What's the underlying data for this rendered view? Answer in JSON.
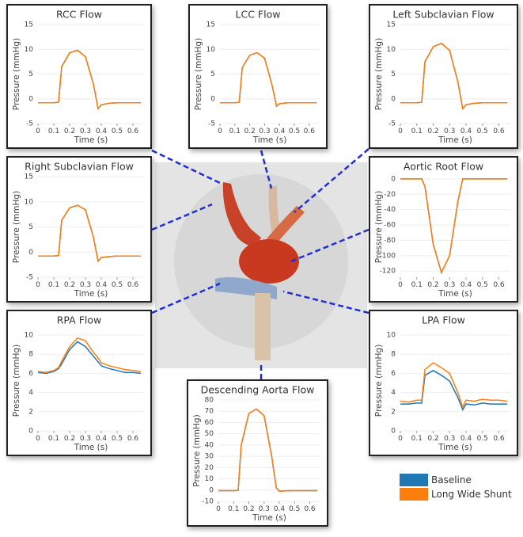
{
  "chart_data": [
    {
      "type": "line",
      "title": "RCC Flow",
      "xlabel": "Time (s)",
      "ylabel": "Pressure (mmHg)",
      "x": [
        0,
        0.05,
        0.1,
        0.13,
        0.15,
        0.2,
        0.25,
        0.3,
        0.35,
        0.38,
        0.4,
        0.45,
        0.5,
        0.55,
        0.6,
        0.65
      ],
      "series": [
        {
          "name": "Baseline",
          "color": "#1f77b4",
          "values": [
            -0.8,
            -0.8,
            -0.8,
            -0.7,
            6.5,
            9.3,
            9.8,
            8.5,
            3,
            -2,
            -1.2,
            -0.9,
            -0.8,
            -0.8,
            -0.8,
            -0.8
          ]
        },
        {
          "name": "Long Wide Shunt",
          "color": "#ff7f0e",
          "values": [
            -0.8,
            -0.8,
            -0.8,
            -0.7,
            6.5,
            9.3,
            9.8,
            8.5,
            3,
            -2,
            -1.2,
            -0.9,
            -0.8,
            -0.8,
            -0.8,
            -0.8
          ]
        }
      ],
      "xlim": [
        0,
        0.67
      ],
      "xticks": [
        0,
        0.1,
        0.2,
        0.3,
        0.4,
        0.5,
        0.6
      ],
      "ylim": [
        -5,
        15
      ],
      "yticks": [
        -5,
        0,
        5,
        10,
        15
      ],
      "grid": true
    },
    {
      "type": "line",
      "title": "LCC Flow",
      "xlabel": "Time (s)",
      "ylabel": "Pressure (mmHg)",
      "x": [
        0,
        0.05,
        0.1,
        0.13,
        0.15,
        0.2,
        0.25,
        0.3,
        0.35,
        0.38,
        0.4,
        0.45,
        0.5,
        0.55,
        0.6,
        0.65
      ],
      "series": [
        {
          "name": "Baseline",
          "color": "#1f77b4",
          "values": [
            -0.8,
            -0.8,
            -0.8,
            -0.7,
            6.3,
            8.8,
            9.3,
            8.2,
            2.8,
            -1.5,
            -1,
            -0.8,
            -0.8,
            -0.8,
            -0.8,
            -0.8
          ]
        },
        {
          "name": "Long Wide Shunt",
          "color": "#ff7f0e",
          "values": [
            -0.8,
            -0.8,
            -0.8,
            -0.7,
            6.3,
            8.8,
            9.3,
            8.2,
            2.8,
            -1.5,
            -1,
            -0.8,
            -0.8,
            -0.8,
            -0.8,
            -0.8
          ]
        }
      ],
      "xlim": [
        0,
        0.67
      ],
      "xticks": [
        0,
        0.1,
        0.2,
        0.3,
        0.4,
        0.5,
        0.6
      ],
      "ylim": [
        -5,
        15
      ],
      "yticks": [
        -5,
        0,
        5,
        10,
        15
      ],
      "grid": true
    },
    {
      "type": "line",
      "title": "Left Subclavian Flow",
      "xlabel": "Time (s)",
      "ylabel": "Pressure (mmHg)",
      "x": [
        0,
        0.05,
        0.1,
        0.13,
        0.15,
        0.2,
        0.25,
        0.3,
        0.35,
        0.38,
        0.4,
        0.45,
        0.5,
        0.55,
        0.6,
        0.65
      ],
      "series": [
        {
          "name": "Baseline",
          "color": "#1f77b4",
          "values": [
            -0.8,
            -0.8,
            -0.8,
            -0.7,
            7.5,
            10.5,
            11.2,
            9.8,
            3.5,
            -2,
            -1.2,
            -0.9,
            -0.8,
            -0.8,
            -0.8,
            -0.8
          ]
        },
        {
          "name": "Long Wide Shunt",
          "color": "#ff7f0e",
          "values": [
            -0.8,
            -0.8,
            -0.8,
            -0.7,
            7.5,
            10.5,
            11.2,
            9.8,
            3.5,
            -2,
            -1.2,
            -0.9,
            -0.8,
            -0.8,
            -0.8,
            -0.8
          ]
        }
      ],
      "xlim": [
        0,
        0.67
      ],
      "xticks": [
        0,
        0.1,
        0.2,
        0.3,
        0.4,
        0.5,
        0.6
      ],
      "ylim": [
        -5,
        15
      ],
      "yticks": [
        -5,
        0,
        5,
        10,
        15
      ],
      "grid": true
    },
    {
      "type": "line",
      "title": "Right Subclavian Flow",
      "xlabel": "Time (s)",
      "ylabel": "Pressure (mmHg)",
      "x": [
        0,
        0.05,
        0.1,
        0.13,
        0.15,
        0.2,
        0.25,
        0.3,
        0.35,
        0.38,
        0.4,
        0.45,
        0.5,
        0.55,
        0.6,
        0.65
      ],
      "series": [
        {
          "name": "Baseline",
          "color": "#1f77b4",
          "values": [
            -0.8,
            -0.8,
            -0.8,
            -0.7,
            6.3,
            8.8,
            9.3,
            8.4,
            3,
            -1.8,
            -1.1,
            -0.9,
            -0.8,
            -0.8,
            -0.8,
            -0.8
          ]
        },
        {
          "name": "Long Wide Shunt",
          "color": "#ff7f0e",
          "values": [
            -0.8,
            -0.8,
            -0.8,
            -0.7,
            6.3,
            8.8,
            9.3,
            8.4,
            3,
            -1.8,
            -1.1,
            -0.9,
            -0.8,
            -0.8,
            -0.8,
            -0.8
          ]
        }
      ],
      "xlim": [
        0,
        0.67
      ],
      "xticks": [
        0,
        0.1,
        0.2,
        0.3,
        0.4,
        0.5,
        0.6
      ],
      "ylim": [
        -5,
        15
      ],
      "yticks": [
        -5,
        0,
        5,
        10,
        15
      ],
      "grid": true
    },
    {
      "type": "line",
      "title": "Aortic Root Flow",
      "xlabel": "Time (s)",
      "ylabel": "Pressure (mmHg)",
      "x": [
        0,
        0.05,
        0.1,
        0.13,
        0.15,
        0.2,
        0.25,
        0.3,
        0.35,
        0.38,
        0.4,
        0.45,
        0.5,
        0.55,
        0.6,
        0.65
      ],
      "series": [
        {
          "name": "Baseline",
          "color": "#1f77b4",
          "values": [
            0,
            0,
            0,
            0,
            -10,
            -85,
            -122,
            -100,
            -30,
            0,
            0,
            0,
            0,
            0,
            0,
            0
          ]
        },
        {
          "name": "Long Wide Shunt",
          "color": "#ff7f0e",
          "values": [
            0,
            0,
            0,
            0,
            -10,
            -85,
            -122,
            -100,
            -30,
            0,
            0,
            0,
            0,
            0,
            0,
            0
          ]
        }
      ],
      "xlim": [
        0,
        0.67
      ],
      "xticks": [
        0,
        0.1,
        0.2,
        0.3,
        0.4,
        0.5,
        0.6
      ],
      "ylim": [
        -128,
        3
      ],
      "yticks": [
        -120,
        -100,
        -80,
        -60,
        -40,
        -20,
        0
      ],
      "grid": true
    },
    {
      "type": "line",
      "title": "RPA Flow",
      "xlabel": "Time (s)",
      "ylabel": "Pressure (mmHg)",
      "x": [
        0,
        0.05,
        0.1,
        0.13,
        0.15,
        0.2,
        0.25,
        0.3,
        0.35,
        0.38,
        0.4,
        0.45,
        0.5,
        0.55,
        0.6,
        0.65
      ],
      "series": [
        {
          "name": "Baseline",
          "color": "#1f77b4",
          "values": [
            6.1,
            6.0,
            6.2,
            6.5,
            7.0,
            8.5,
            9.3,
            8.8,
            7.8,
            7.2,
            6.8,
            6.5,
            6.3,
            6.1,
            6.1,
            6.0
          ]
        },
        {
          "name": "Long Wide Shunt",
          "color": "#ff7f0e",
          "values": [
            6.2,
            6.1,
            6.3,
            6.6,
            7.3,
            8.8,
            9.7,
            9.4,
            8.2,
            7.6,
            7.1,
            6.8,
            6.6,
            6.4,
            6.3,
            6.2
          ]
        }
      ],
      "xlim": [
        0,
        0.67
      ],
      "xticks": [
        0,
        0.1,
        0.2,
        0.3,
        0.4,
        0.5,
        0.6
      ],
      "ylim": [
        0,
        10.5
      ],
      "yticks": [
        0,
        2,
        4,
        6,
        8,
        10
      ],
      "grid": true
    },
    {
      "type": "line",
      "title": "LPA Flow",
      "xlabel": "Time (s)",
      "ylabel": "Pressure (mmHg)",
      "x": [
        0,
        0.05,
        0.1,
        0.13,
        0.15,
        0.2,
        0.25,
        0.3,
        0.35,
        0.38,
        0.4,
        0.45,
        0.5,
        0.55,
        0.6,
        0.65
      ],
      "series": [
        {
          "name": "Baseline",
          "color": "#1f77b4",
          "values": [
            2.8,
            2.8,
            2.9,
            2.9,
            5.8,
            6.3,
            5.8,
            5.2,
            3.5,
            2.2,
            2.8,
            2.7,
            2.9,
            2.8,
            2.8,
            2.8
          ]
        },
        {
          "name": "Long Wide Shunt",
          "color": "#ff7f0e",
          "values": [
            3.1,
            3.0,
            3.2,
            3.2,
            6.4,
            7.1,
            6.6,
            6.0,
            4.0,
            2.5,
            3.2,
            3.1,
            3.3,
            3.2,
            3.2,
            3.1
          ]
        }
      ],
      "xlim": [
        0,
        0.67
      ],
      "xticks": [
        0,
        0.1,
        0.2,
        0.3,
        0.4,
        0.5,
        0.6
      ],
      "ylim": [
        0,
        10.5
      ],
      "yticks": [
        0,
        2,
        4,
        6,
        8,
        10
      ],
      "grid": true
    },
    {
      "type": "line",
      "title": "Descending Aorta Flow",
      "xlabel": "Time (s)",
      "ylabel": "Pressure (mmHg)",
      "x": [
        0,
        0.05,
        0.1,
        0.13,
        0.15,
        0.2,
        0.25,
        0.3,
        0.35,
        0.38,
        0.4,
        0.45,
        0.5,
        0.55,
        0.6,
        0.65
      ],
      "series": [
        {
          "name": "Baseline",
          "color": "#1f77b4",
          "values": [
            -0.5,
            -0.5,
            -0.5,
            -0.4,
            40,
            68,
            72,
            66,
            30,
            2,
            -1,
            -0.6,
            -0.5,
            -0.5,
            -0.5,
            -0.5
          ]
        },
        {
          "name": "Long Wide Shunt",
          "color": "#ff7f0e",
          "values": [
            -0.5,
            -0.5,
            -0.5,
            -0.4,
            40,
            68,
            72,
            66,
            30,
            2,
            -1,
            -0.6,
            -0.5,
            -0.5,
            -0.5,
            -0.5
          ]
        }
      ],
      "xlim": [
        0,
        0.67
      ],
      "xticks": [
        0,
        0.1,
        0.2,
        0.3,
        0.4,
        0.5,
        0.6
      ],
      "ylim": [
        -10,
        80
      ],
      "yticks": [
        -10,
        0,
        10,
        20,
        30,
        40,
        50,
        60,
        70,
        80
      ],
      "grid": true
    }
  ]
}
